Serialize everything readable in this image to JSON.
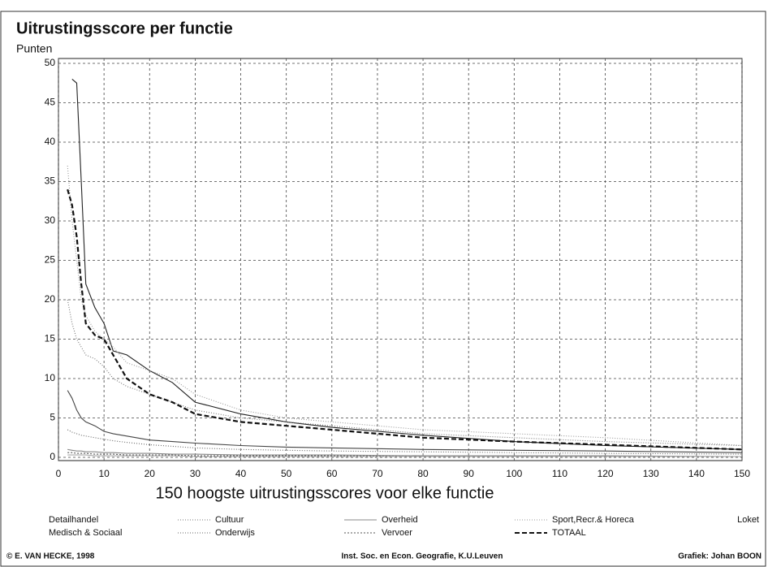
{
  "chart_data": {
    "type": "line",
    "title": "Uitrustingsscore per functie",
    "y_label": "Punten",
    "x_label": "150 hoogste uitrustingsscores voor elke functie",
    "x": [
      2,
      3,
      4,
      5,
      6,
      8,
      10,
      12,
      15,
      20,
      25,
      30,
      40,
      50,
      60,
      80,
      100,
      120,
      150
    ],
    "series": [
      {
        "name": "Detailhandel",
        "color": "#222222",
        "dash": "none",
        "values": [
          null,
          48,
          47.5,
          35,
          22,
          19,
          17,
          13.5,
          13,
          11,
          9.5,
          7,
          5.5,
          4.5,
          3.8,
          2.8,
          2,
          1.5,
          1
        ]
      },
      {
        "name": "Medisch & Sociaal",
        "color": "#444444",
        "dash": "none",
        "values": [
          8.5,
          7.5,
          6,
          5,
          4.5,
          4,
          3.3,
          3,
          2.7,
          2.2,
          2,
          1.8,
          1.5,
          1.3,
          1.2,
          1,
          0.9,
          0.8,
          0.6
        ]
      },
      {
        "name": "Cultuur",
        "color": "#777777",
        "dash": "1 2",
        "values": [
          20,
          17,
          15,
          14,
          13,
          12.5,
          11.5,
          10,
          9,
          8,
          7,
          6,
          5,
          4.5,
          4,
          3,
          2.5,
          2,
          1.5
        ]
      },
      {
        "name": "Onderwijs",
        "color": "#666666",
        "dash": "1 2",
        "values": [
          3.5,
          3.2,
          3,
          2.8,
          2.7,
          2.5,
          2.3,
          2.1,
          1.9,
          1.6,
          1.4,
          1.2,
          1,
          0.9,
          0.8,
          0.7,
          0.6,
          0.5,
          0.4
        ]
      },
      {
        "name": "Overheid",
        "color": "#888888",
        "dash": "none",
        "values": [
          1,
          0.9,
          0.8,
          0.8,
          0.7,
          0.7,
          0.6,
          0.6,
          0.5,
          0.5,
          0.4,
          0.4,
          0.3,
          0.3,
          0.3,
          0.2,
          0.2,
          0.2,
          0.1
        ]
      },
      {
        "name": "Vervoer",
        "color": "#555555",
        "dash": "2 2",
        "values": [
          0.6,
          0.6,
          0.5,
          0.5,
          0.5,
          0.4,
          0.4,
          0.4,
          0.3,
          0.3,
          0.3,
          0.2,
          0.2,
          0.2,
          0.2,
          0.1,
          0.1,
          0.1,
          0.1
        ]
      },
      {
        "name": "Sport,Recr.& Horeca",
        "color": "#999999",
        "dash": "1 2",
        "values": [
          37,
          30,
          25,
          20,
          18,
          16,
          15,
          14,
          12,
          11,
          10,
          8,
          6,
          5,
          4.5,
          3.5,
          3,
          2.5,
          1.5
        ]
      },
      {
        "name": "TOTAAL",
        "color": "#111111",
        "dash": "6 3",
        "values": [
          34,
          32,
          28,
          22,
          17,
          15.5,
          15,
          13,
          10,
          8,
          7,
          5.5,
          4.5,
          4,
          3.5,
          2.5,
          2,
          1.6,
          1
        ]
      },
      {
        "name": "Loket",
        "color": "#aaaaaa",
        "dash": "none",
        "values": [
          0.3,
          0.3,
          0.3,
          0.3,
          0.3,
          0.2,
          0.2,
          0.2,
          0.2,
          0.2,
          0.2,
          0.1,
          0.1,
          0.1,
          0.1,
          0.1,
          0.1,
          0.1,
          0.1
        ]
      }
    ],
    "xlim": [
      0,
      150
    ],
    "xticks": [
      0,
      10,
      20,
      30,
      40,
      50,
      60,
      70,
      80,
      90,
      100,
      110,
      120,
      130,
      140,
      150
    ],
    "ylim": [
      0,
      50
    ],
    "yticks": [
      0,
      5,
      10,
      15,
      20,
      25,
      30,
      35,
      40,
      45,
      50
    ],
    "grid": true,
    "footer": {
      "left": "© E. VAN HECKE, 1998",
      "center": "Inst. Soc. en Econ. Geografie, K.U.Leuven",
      "right": "Grafiek: Johan BOON"
    }
  }
}
